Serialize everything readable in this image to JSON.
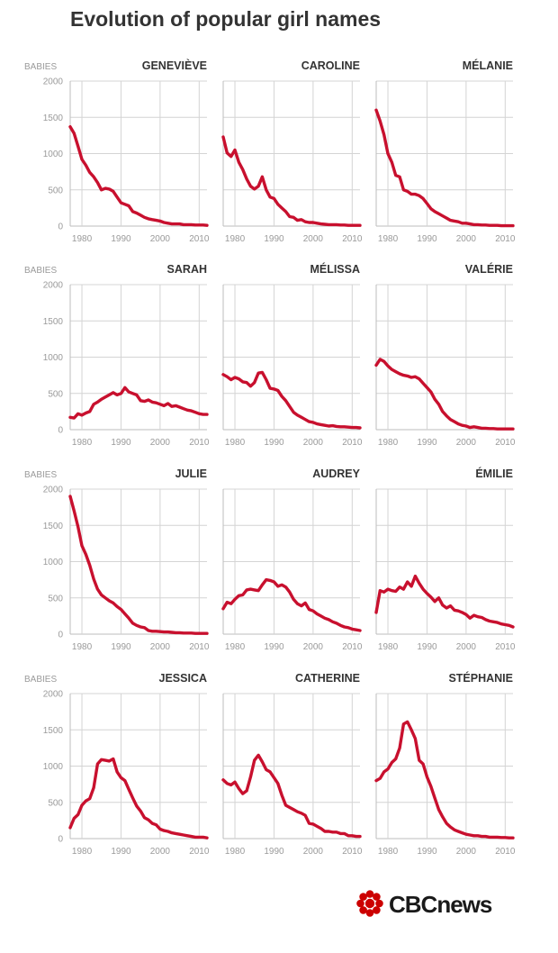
{
  "title": "Evolution of popular girl names",
  "brand": {
    "text": "CBCnews",
    "name": "cbc-news-logo",
    "color": "#cc0000"
  },
  "colors": {
    "series": "#c8102e",
    "grid": "#d4d4d4",
    "text": "#333333",
    "axis_text": "#9a9a9a"
  },
  "chart_data": [
    {
      "type": "line",
      "title": "GENEVIÈVE",
      "ylabel": "BABIES",
      "xlim": [
        1977,
        2012
      ],
      "ylim": [
        0,
        2000
      ],
      "yticks": [
        0,
        500,
        1000,
        1500,
        2000
      ],
      "xticks": [
        1980,
        1990,
        2000,
        2010
      ],
      "grid": true,
      "x": [
        1977,
        1978,
        1979,
        1980,
        1981,
        1982,
        1983,
        1984,
        1985,
        1986,
        1987,
        1988,
        1989,
        1990,
        1991,
        1992,
        1993,
        1994,
        1995,
        1996,
        1997,
        1998,
        1999,
        2000,
        2001,
        2002,
        2003,
        2004,
        2005,
        2006,
        2007,
        2008,
        2009,
        2010,
        2011,
        2012
      ],
      "y": [
        1370,
        1280,
        1100,
        920,
        840,
        740,
        680,
        600,
        500,
        520,
        510,
        480,
        400,
        320,
        300,
        280,
        200,
        180,
        150,
        120,
        100,
        90,
        80,
        70,
        50,
        40,
        30,
        30,
        30,
        20,
        20,
        20,
        15,
        15,
        15,
        10
      ]
    },
    {
      "type": "line",
      "title": "CAROLINE",
      "ylabel": "",
      "xlim": [
        1977,
        2012
      ],
      "ylim": [
        0,
        2000
      ],
      "yticks": [
        0,
        500,
        1000,
        1500,
        2000
      ],
      "xticks": [
        1980,
        1990,
        2000,
        2010
      ],
      "grid": true,
      "x": [
        1977,
        1978,
        1979,
        1980,
        1981,
        1982,
        1983,
        1984,
        1985,
        1986,
        1987,
        1988,
        1989,
        1990,
        1991,
        1992,
        1993,
        1994,
        1995,
        1996,
        1997,
        1998,
        1999,
        2000,
        2001,
        2002,
        2003,
        2004,
        2005,
        2006,
        2007,
        2008,
        2009,
        2010,
        2011,
        2012
      ],
      "y": [
        1230,
        1010,
        960,
        1050,
        880,
        780,
        650,
        550,
        510,
        550,
        680,
        500,
        400,
        380,
        300,
        250,
        200,
        130,
        120,
        80,
        90,
        60,
        50,
        50,
        40,
        30,
        25,
        20,
        20,
        20,
        15,
        15,
        10,
        10,
        10,
        10
      ]
    },
    {
      "type": "line",
      "title": "MÉLANIE",
      "ylabel": "",
      "xlim": [
        1977,
        2012
      ],
      "ylim": [
        0,
        2000
      ],
      "yticks": [
        0,
        500,
        1000,
        1500,
        2000
      ],
      "xticks": [
        1980,
        1990,
        2000,
        2010
      ],
      "grid": true,
      "x": [
        1977,
        1978,
        1979,
        1980,
        1981,
        1982,
        1983,
        1984,
        1985,
        1986,
        1987,
        1988,
        1989,
        1990,
        1991,
        1992,
        1993,
        1994,
        1995,
        1996,
        1997,
        1998,
        1999,
        2000,
        2001,
        2002,
        2003,
        2004,
        2005,
        2006,
        2007,
        2008,
        2009,
        2010,
        2011,
        2012
      ],
      "y": [
        1600,
        1450,
        1260,
        1000,
        880,
        700,
        680,
        500,
        480,
        440,
        440,
        420,
        380,
        310,
        240,
        200,
        170,
        140,
        110,
        80,
        70,
        60,
        40,
        40,
        30,
        20,
        20,
        15,
        15,
        10,
        10,
        10,
        5,
        5,
        5,
        5
      ]
    },
    {
      "type": "line",
      "title": "SARAH",
      "ylabel": "BABIES",
      "xlim": [
        1977,
        2012
      ],
      "ylim": [
        0,
        2000
      ],
      "yticks": [
        0,
        500,
        1000,
        1500,
        2000
      ],
      "xticks": [
        1980,
        1990,
        2000,
        2010
      ],
      "grid": true,
      "x": [
        1977,
        1978,
        1979,
        1980,
        1981,
        1982,
        1983,
        1984,
        1985,
        1986,
        1987,
        1988,
        1989,
        1990,
        1991,
        1992,
        1993,
        1994,
        1995,
        1996,
        1997,
        1998,
        1999,
        2000,
        2001,
        2002,
        2003,
        2004,
        2005,
        2006,
        2007,
        2008,
        2009,
        2010,
        2011,
        2012
      ],
      "y": [
        170,
        160,
        220,
        200,
        230,
        250,
        350,
        380,
        420,
        450,
        480,
        510,
        480,
        500,
        580,
        520,
        500,
        480,
        400,
        390,
        410,
        380,
        370,
        350,
        330,
        360,
        320,
        330,
        310,
        290,
        270,
        260,
        240,
        220,
        210,
        210
      ]
    },
    {
      "type": "line",
      "title": "MÉLISSA",
      "ylabel": "",
      "xlim": [
        1977,
        2012
      ],
      "ylim": [
        0,
        2000
      ],
      "yticks": [
        0,
        500,
        1000,
        1500,
        2000
      ],
      "xticks": [
        1980,
        1990,
        2000,
        2010
      ],
      "grid": true,
      "x": [
        1977,
        1978,
        1979,
        1980,
        1981,
        1982,
        1983,
        1984,
        1985,
        1986,
        1987,
        1988,
        1989,
        1990,
        1991,
        1992,
        1993,
        1994,
        1995,
        1996,
        1997,
        1998,
        1999,
        2000,
        2001,
        2002,
        2003,
        2004,
        2005,
        2006,
        2007,
        2008,
        2009,
        2010,
        2011,
        2012
      ],
      "y": [
        760,
        730,
        690,
        720,
        700,
        660,
        650,
        600,
        650,
        780,
        790,
        690,
        570,
        560,
        540,
        460,
        400,
        320,
        240,
        200,
        170,
        140,
        110,
        100,
        80,
        70,
        60,
        50,
        55,
        45,
        40,
        40,
        35,
        30,
        30,
        25
      ]
    },
    {
      "type": "line",
      "title": "VALÉRIE",
      "ylabel": "",
      "xlim": [
        1977,
        2012
      ],
      "ylim": [
        0,
        2000
      ],
      "yticks": [
        0,
        500,
        1000,
        1500,
        2000
      ],
      "xticks": [
        1980,
        1990,
        2000,
        2010
      ],
      "grid": true,
      "x": [
        1977,
        1978,
        1979,
        1980,
        1981,
        1982,
        1983,
        1984,
        1985,
        1986,
        1987,
        1988,
        1989,
        1990,
        1991,
        1992,
        1993,
        1994,
        1995,
        1996,
        1997,
        1998,
        1999,
        2000,
        2001,
        2002,
        2003,
        2004,
        2005,
        2006,
        2007,
        2008,
        2009,
        2010,
        2011,
        2012
      ],
      "y": [
        890,
        970,
        940,
        880,
        830,
        800,
        770,
        750,
        740,
        720,
        730,
        700,
        640,
        580,
        520,
        420,
        350,
        250,
        190,
        140,
        110,
        80,
        60,
        50,
        30,
        40,
        30,
        20,
        20,
        15,
        15,
        10,
        10,
        10,
        10,
        10
      ]
    },
    {
      "type": "line",
      "title": "JULIE",
      "ylabel": "BABIES",
      "xlim": [
        1977,
        2012
      ],
      "ylim": [
        0,
        2000
      ],
      "yticks": [
        0,
        500,
        1000,
        1500,
        2000
      ],
      "xticks": [
        1980,
        1990,
        2000,
        2010
      ],
      "grid": true,
      "x": [
        1977,
        1978,
        1979,
        1980,
        1981,
        1982,
        1983,
        1984,
        1985,
        1986,
        1987,
        1988,
        1989,
        1990,
        1991,
        1992,
        1993,
        1994,
        1995,
        1996,
        1997,
        1998,
        1999,
        2000,
        2001,
        2002,
        2003,
        2004,
        2005,
        2006,
        2007,
        2008,
        2009,
        2010,
        2011,
        2012
      ],
      "y": [
        1900,
        1700,
        1480,
        1220,
        1100,
        950,
        760,
        620,
        540,
        500,
        460,
        430,
        380,
        340,
        280,
        220,
        150,
        120,
        100,
        90,
        50,
        40,
        40,
        35,
        30,
        30,
        25,
        20,
        20,
        15,
        15,
        15,
        10,
        10,
        10,
        10
      ]
    },
    {
      "type": "line",
      "title": "AUDREY",
      "ylabel": "",
      "xlim": [
        1977,
        2012
      ],
      "ylim": [
        0,
        2000
      ],
      "yticks": [
        0,
        500,
        1000,
        1500,
        2000
      ],
      "xticks": [
        1980,
        1990,
        2000,
        2010
      ],
      "grid": true,
      "x": [
        1977,
        1978,
        1979,
        1980,
        1981,
        1982,
        1983,
        1984,
        1985,
        1986,
        1987,
        1988,
        1989,
        1990,
        1991,
        1992,
        1993,
        1994,
        1995,
        1996,
        1997,
        1998,
        1999,
        2000,
        2001,
        2002,
        2003,
        2004,
        2005,
        2006,
        2007,
        2008,
        2009,
        2010,
        2011,
        2012
      ],
      "y": [
        350,
        440,
        420,
        480,
        530,
        540,
        610,
        620,
        610,
        600,
        680,
        750,
        740,
        720,
        660,
        680,
        650,
        580,
        480,
        420,
        390,
        430,
        340,
        320,
        280,
        250,
        220,
        200,
        170,
        150,
        120,
        100,
        90,
        70,
        60,
        50
      ]
    },
    {
      "type": "line",
      "title": "ÉMILIE",
      "ylabel": "",
      "xlim": [
        1977,
        2012
      ],
      "ylim": [
        0,
        2000
      ],
      "yticks": [
        0,
        500,
        1000,
        1500,
        2000
      ],
      "xticks": [
        1980,
        1990,
        2000,
        2010
      ],
      "grid": true,
      "x": [
        1977,
        1978,
        1979,
        1980,
        1981,
        1982,
        1983,
        1984,
        1985,
        1986,
        1987,
        1988,
        1989,
        1990,
        1991,
        1992,
        1993,
        1994,
        1995,
        1996,
        1997,
        1998,
        1999,
        2000,
        2001,
        2002,
        2003,
        2004,
        2005,
        2006,
        2007,
        2008,
        2009,
        2010,
        2011,
        2012
      ],
      "y": [
        300,
        600,
        580,
        620,
        600,
        590,
        650,
        620,
        720,
        660,
        800,
        700,
        620,
        560,
        510,
        450,
        500,
        400,
        360,
        390,
        330,
        320,
        300,
        270,
        220,
        260,
        240,
        230,
        200,
        180,
        170,
        160,
        140,
        130,
        120,
        100
      ]
    },
    {
      "type": "line",
      "title": "JESSICA",
      "ylabel": "BABIES",
      "xlim": [
        1977,
        2012
      ],
      "ylim": [
        0,
        2000
      ],
      "yticks": [
        0,
        500,
        1000,
        1500,
        2000
      ],
      "xticks": [
        1980,
        1990,
        2000,
        2010
      ],
      "grid": true,
      "x": [
        1977,
        1978,
        1979,
        1980,
        1981,
        1982,
        1983,
        1984,
        1985,
        1986,
        1987,
        1988,
        1989,
        1990,
        1991,
        1992,
        1993,
        1994,
        1995,
        1996,
        1997,
        1998,
        1999,
        2000,
        2001,
        2002,
        2003,
        2004,
        2005,
        2006,
        2007,
        2008,
        2009,
        2010,
        2011,
        2012
      ],
      "y": [
        150,
        280,
        330,
        460,
        520,
        550,
        700,
        1030,
        1090,
        1080,
        1070,
        1100,
        920,
        840,
        800,
        680,
        560,
        450,
        380,
        290,
        260,
        210,
        190,
        130,
        110,
        100,
        80,
        70,
        60,
        50,
        40,
        30,
        20,
        20,
        20,
        10
      ]
    },
    {
      "type": "line",
      "title": "CATHERINE",
      "ylabel": "",
      "xlim": [
        1977,
        2012
      ],
      "ylim": [
        0,
        2000
      ],
      "yticks": [
        0,
        500,
        1000,
        1500,
        2000
      ],
      "xticks": [
        1980,
        1990,
        2000,
        2010
      ],
      "grid": true,
      "x": [
        1977,
        1978,
        1979,
        1980,
        1981,
        1982,
        1983,
        1984,
        1985,
        1986,
        1987,
        1988,
        1989,
        1990,
        1991,
        1992,
        1993,
        1994,
        1995,
        1996,
        1997,
        1998,
        1999,
        2000,
        2001,
        2002,
        2003,
        2004,
        2005,
        2006,
        2007,
        2008,
        2009,
        2010,
        2011,
        2012
      ],
      "y": [
        810,
        760,
        740,
        780,
        690,
        620,
        660,
        850,
        1080,
        1150,
        1060,
        950,
        920,
        840,
        760,
        600,
        460,
        430,
        400,
        370,
        350,
        320,
        210,
        200,
        170,
        140,
        100,
        100,
        90,
        90,
        70,
        70,
        40,
        40,
        30,
        30
      ]
    },
    {
      "type": "line",
      "title": "STÉPHANIE",
      "ylabel": "",
      "xlim": [
        1977,
        2012
      ],
      "ylim": [
        0,
        2000
      ],
      "yticks": [
        0,
        500,
        1000,
        1500,
        2000
      ],
      "xticks": [
        1980,
        1990,
        2000,
        2010
      ],
      "grid": true,
      "x": [
        1977,
        1978,
        1979,
        1980,
        1981,
        1982,
        1983,
        1984,
        1985,
        1986,
        1987,
        1988,
        1989,
        1990,
        1991,
        1992,
        1993,
        1994,
        1995,
        1996,
        1997,
        1998,
        1999,
        2000,
        2001,
        2002,
        2003,
        2004,
        2005,
        2006,
        2007,
        2008,
        2009,
        2010,
        2011,
        2012
      ],
      "y": [
        800,
        830,
        920,
        960,
        1050,
        1100,
        1250,
        1580,
        1610,
        1500,
        1380,
        1080,
        1030,
        850,
        720,
        560,
        400,
        300,
        210,
        160,
        120,
        100,
        80,
        60,
        50,
        40,
        40,
        30,
        30,
        20,
        20,
        20,
        15,
        15,
        10,
        10
      ]
    }
  ]
}
